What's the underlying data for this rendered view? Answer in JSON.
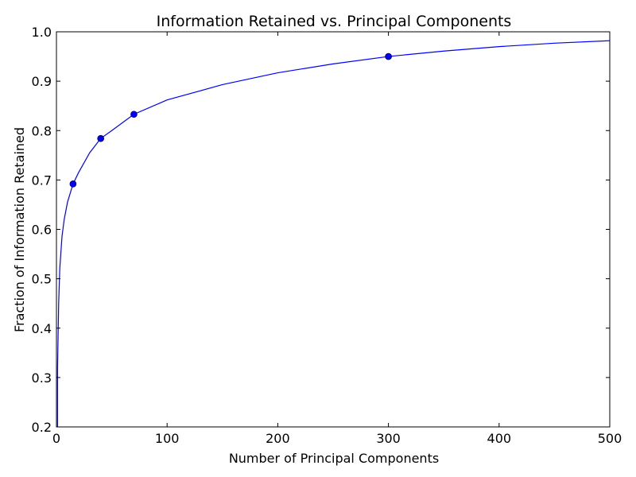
{
  "chart_data": {
    "type": "line",
    "title": "Information Retained vs. Principal Components",
    "xlabel": "Number of Principal Components",
    "ylabel": "Fraction of Information Retained",
    "xlim": [
      0,
      500
    ],
    "ylim": [
      0.2,
      1.0
    ],
    "xticks": [
      0,
      100,
      200,
      300,
      400,
      500
    ],
    "yticks": [
      0.2,
      0.3,
      0.4,
      0.5,
      0.6,
      0.7,
      0.8,
      0.9,
      1.0
    ],
    "xtick_labels": [
      "0",
      "100",
      "200",
      "300",
      "400",
      "500"
    ],
    "ytick_labels": [
      "0.2",
      "0.3",
      "0.4",
      "0.5",
      "0.6",
      "0.7",
      "0.8",
      "0.9",
      "1.0"
    ],
    "grid": false,
    "legend": "none",
    "line_color": "#0000ff",
    "series": [
      {
        "kind": "line",
        "x": [
          1,
          2,
          3,
          5,
          7,
          10,
          15,
          20,
          30,
          40,
          50,
          70,
          100,
          150,
          200,
          250,
          300,
          350,
          400,
          450,
          500
        ],
        "y": [
          0.32,
          0.45,
          0.52,
          0.585,
          0.62,
          0.655,
          0.692,
          0.715,
          0.755,
          0.784,
          0.8,
          0.833,
          0.862,
          0.893,
          0.917,
          0.935,
          0.95,
          0.961,
          0.97,
          0.977,
          0.982
        ]
      },
      {
        "kind": "markers",
        "x": [
          15,
          40,
          70,
          300
        ],
        "y": [
          0.692,
          0.784,
          0.833,
          0.95
        ]
      }
    ]
  }
}
